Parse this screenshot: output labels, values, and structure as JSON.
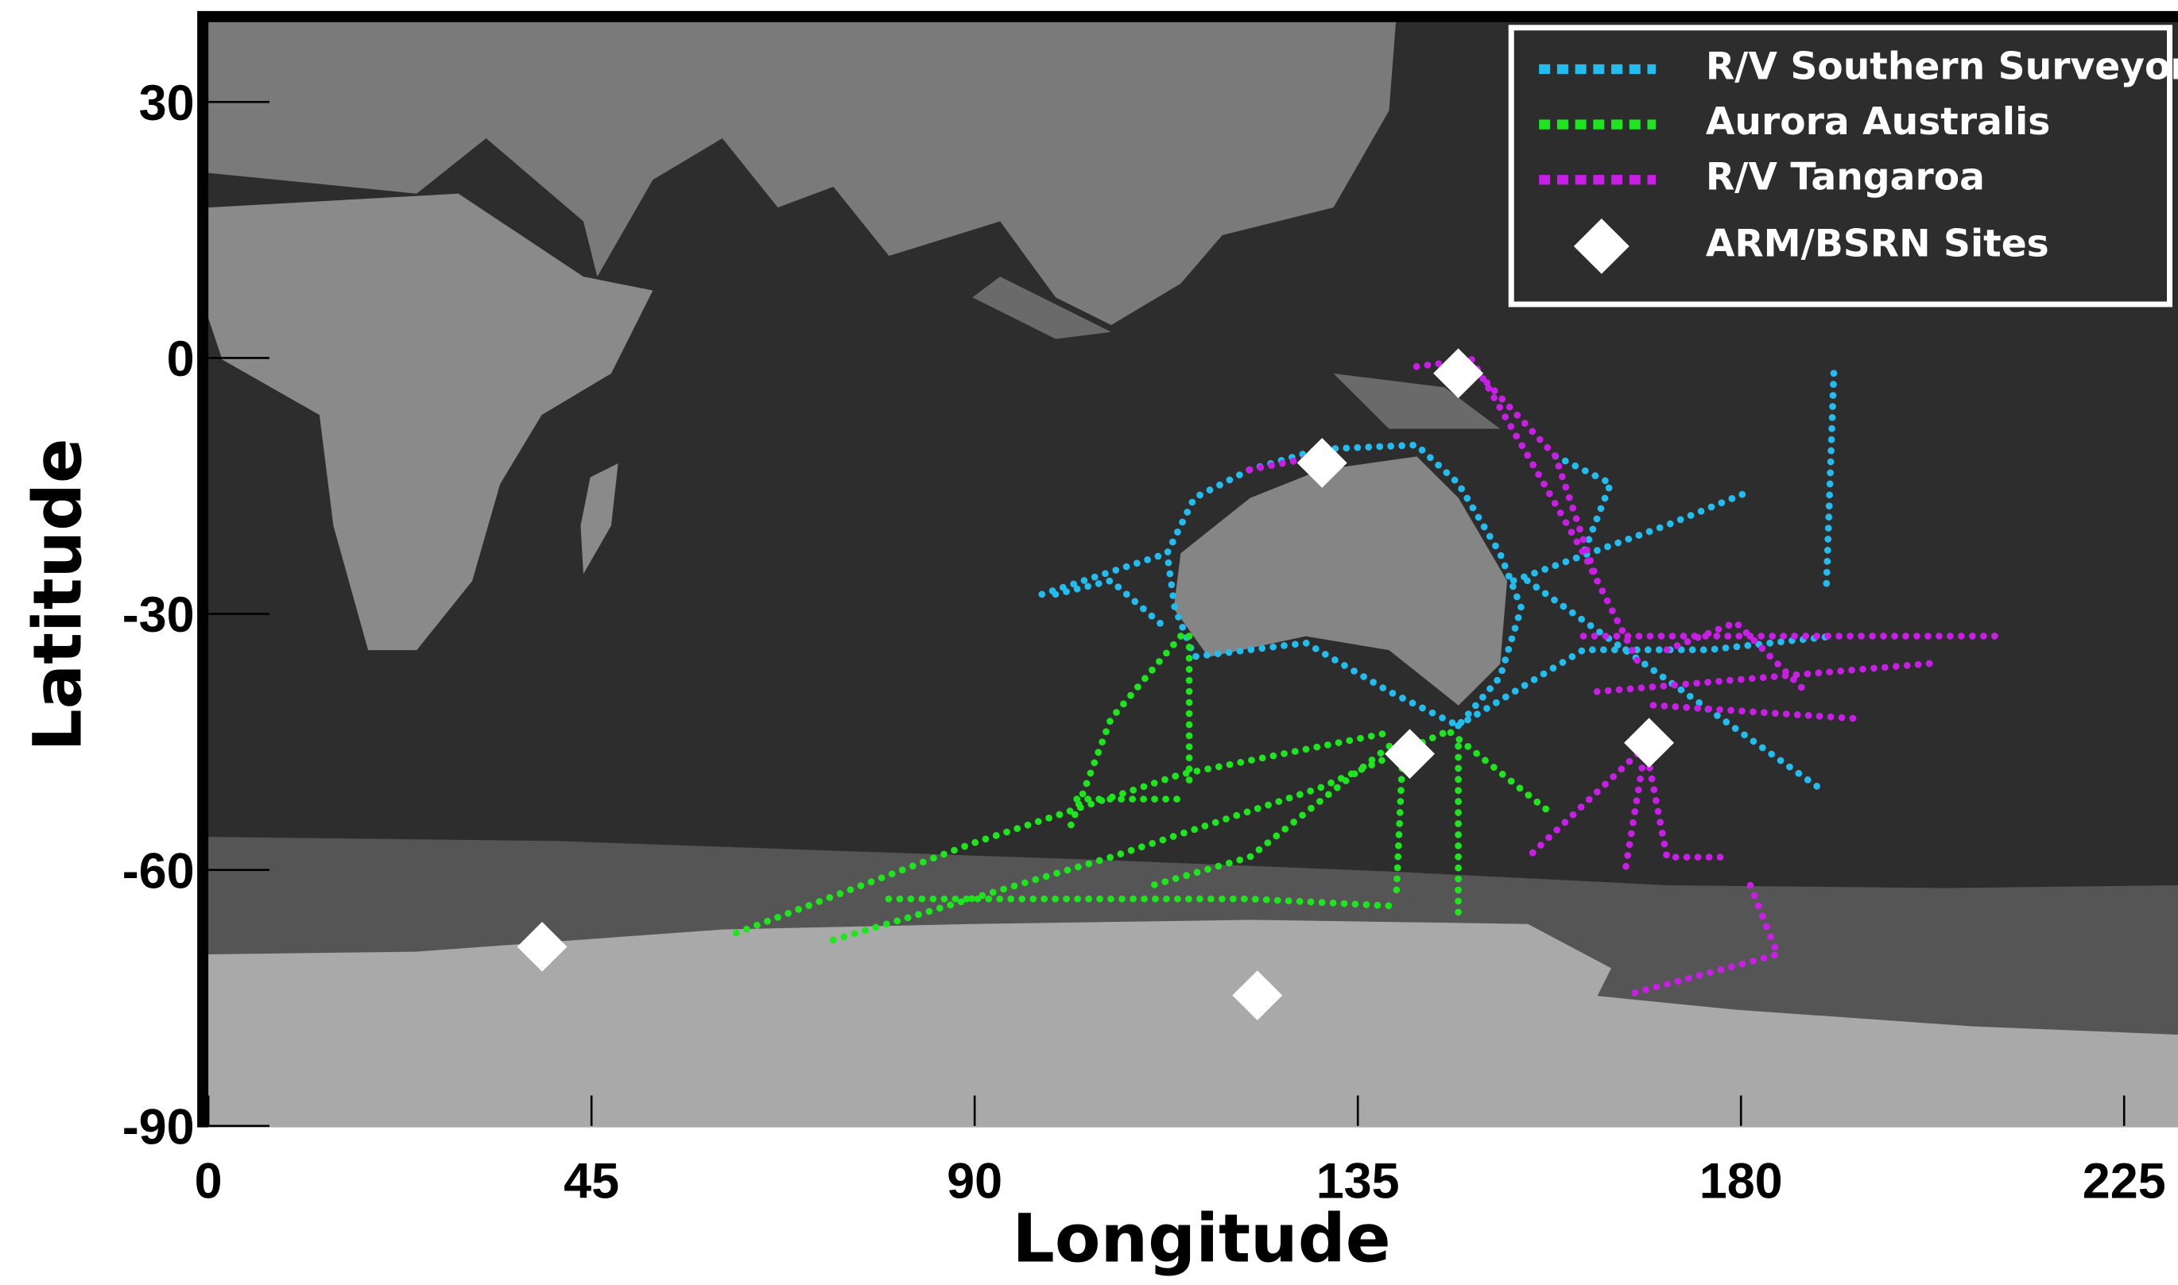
{
  "chart_data": {
    "type": "scatter",
    "x_label": "Longitude",
    "y_label": "Latitude",
    "xlim": [
      0,
      231
    ],
    "ylim": [
      -90,
      40
    ],
    "xticks": [
      0,
      45,
      90,
      135,
      180,
      225
    ],
    "yticks": [
      -90,
      -60,
      -30,
      0,
      30
    ],
    "legend": "upper right",
    "series": [
      {
        "name": "R/V Southern Surveyor",
        "color": "#22bcee",
        "style": "dotted",
        "x": [
          97.9,
          112.6,
          115.8,
          122.3,
          130.5,
          141.9,
          146.8,
          151.7,
          154.2,
          151.7,
          146.8,
          138.7,
          128.9,
          115.8,
          113.5,
          112.6,
          null,
          99.5,
          106.0,
          112.6,
          null,
          146.8,
          161.5,
          176.2,
          190.9,
          null,
          153.3,
          171.3,
          181.1,
          null,
          190.9,
          190.0,
          null,
          154.9,
          189.2,
          null,
          158.2,
          164.7,
          161.5
        ],
        "y": [
          -27.7,
          -22.9,
          -16.4,
          -13.1,
          -10.7,
          -10.2,
          -14.7,
          -22.9,
          -29.3,
          -37.4,
          -43.1,
          -39.1,
          -33.4,
          -35.0,
          -29.3,
          -22.9,
          null,
          -27.7,
          -26.1,
          -31.8,
          null,
          -43.1,
          -34.2,
          -34.2,
          -32.6,
          null,
          -26.1,
          -19.6,
          -15.6,
          null,
          -1.8,
          -27.7,
          null,
          -26.1,
          -50.4,
          null,
          -11.5,
          -14.7,
          -22.9
        ]
      },
      {
        "name": "Aurora Australis",
        "color": "#1ee61e",
        "style": "dotted",
        "x": [
          62.0,
          89.7,
          114.2,
          138.7,
          null,
          73.4,
          106.0,
          130.5,
          145.2,
          null,
          79.9,
          122.3,
          138.7,
          null,
          115.2,
          115.2,
          null,
          114.2,
          106.0,
          101.1,
          null,
          102.0,
          114.2,
          null,
          140.3,
          139.5,
          null,
          146.8,
          146.8,
          null,
          145.9,
          158.0,
          null,
          138.7,
          122.3,
          110.9
        ],
        "y": [
          -67.4,
          -56.9,
          -48.8,
          -43.9,
          null,
          -68.2,
          -58.5,
          -50.4,
          -43.9,
          null,
          -63.4,
          -63.4,
          -64.2,
          null,
          -32.6,
          -50.4,
          null,
          -32.6,
          -42.3,
          -55.3,
          null,
          -51.7,
          -51.7,
          null,
          -45.5,
          -63.4,
          null,
          -45.5,
          -65.0,
          null,
          -43.9,
          -53.6,
          null,
          -45.5,
          -58.5,
          -61.8
        ]
      },
      {
        "name": "R/V Tangaroa",
        "color": "#c81ee6",
        "style": "dotted",
        "x": [
          141.9,
          148.4,
          155.0,
          161.5,
          168.0,
          null,
          148.4,
          158.2,
          163.1,
          null,
          122.3,
          130.5,
          null,
          161.5,
          192.5,
          210.4,
          null,
          163.1,
          202.3,
          null,
          168.8,
          171.3,
          177.8,
          null,
          168.8,
          155.0,
          null,
          168.8,
          166.4,
          null,
          181.1,
          184.3,
          166.4,
          null,
          169.7,
          194.1,
          null,
          171.3,
          179.4,
          187.6
        ],
        "y": [
          -1.0,
          -0.2,
          -11.5,
          -22.9,
          -35.8,
          null,
          -1.0,
          -11.5,
          -26.1,
          null,
          -13.1,
          -11.5,
          null,
          -32.6,
          -32.6,
          -32.6,
          null,
          -39.1,
          -35.8,
          null,
          -45.5,
          -58.5,
          -58.5,
          null,
          -45.5,
          -58.5,
          null,
          -45.5,
          -60.1,
          null,
          -61.8,
          -69.9,
          -74.7,
          null,
          -40.7,
          -42.3,
          null,
          -34.2,
          -31.0,
          -39.1
        ]
      },
      {
        "name": "ARM/BSRN Sites",
        "color": "#ffffff",
        "style": "diamond",
        "x": [
          39.2,
          123.2,
          141.1,
          130.8,
          146.8,
          169.2
        ],
        "y": [
          -69.0,
          -74.7,
          -46.4,
          -12.3,
          -1.8,
          -45.1
        ]
      }
    ]
  }
}
